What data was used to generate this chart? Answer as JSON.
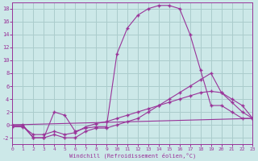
{
  "background_color": "#cce8e8",
  "grid_color": "#aacccc",
  "line_color": "#993399",
  "line1_x": [
    0,
    1,
    2,
    3,
    4,
    5,
    6,
    7,
    8,
    9,
    10,
    11,
    12,
    13,
    14,
    15,
    16,
    17,
    18,
    19,
    20,
    21,
    22,
    23
  ],
  "line1_y": [
    0,
    0,
    -2,
    -2,
    2,
    1.5,
    -1,
    -0.5,
    -0.3,
    -0.3,
    11,
    15,
    17,
    18,
    18.5,
    18.5,
    18,
    14,
    8.5,
    3,
    3,
    2,
    1,
    1
  ],
  "line2_x": [
    0,
    1,
    2,
    3,
    4,
    5,
    6,
    7,
    8,
    9,
    10,
    11,
    12,
    13,
    14,
    15,
    16,
    17,
    18,
    19,
    20,
    21,
    22,
    23
  ],
  "line2_y": [
    -0.2,
    -0.2,
    -2,
    -2,
    -1.5,
    -2,
    -2,
    -1,
    -0.5,
    -0.5,
    0,
    0.5,
    1,
    2,
    3,
    4,
    5,
    6,
    7,
    8,
    5,
    3.5,
    2,
    1
  ],
  "line3_x": [
    0,
    1,
    2,
    3,
    4,
    5,
    6,
    7,
    8,
    9,
    10,
    11,
    12,
    13,
    14,
    15,
    16,
    17,
    18,
    19,
    20,
    21,
    22,
    23
  ],
  "line3_y": [
    -0.3,
    -0.3,
    -1.5,
    -1.5,
    -1,
    -1.5,
    -1.2,
    -0.3,
    0.2,
    0.5,
    1,
    1.5,
    2,
    2.5,
    3,
    3.5,
    4,
    4.5,
    5,
    5.2,
    5,
    4,
    3,
    1
  ],
  "line4_x": [
    0,
    23
  ],
  "line4_y": [
    0,
    1
  ],
  "xlabel": "Windchill (Refroidissement éolien,°C)",
  "xlim": [
    0,
    23
  ],
  "ylim": [
    -3,
    19
  ],
  "xticks": [
    0,
    1,
    2,
    3,
    4,
    5,
    6,
    7,
    8,
    9,
    10,
    11,
    12,
    13,
    14,
    15,
    16,
    17,
    18,
    19,
    20,
    21,
    22,
    23
  ],
  "yticks": [
    -2,
    0,
    2,
    4,
    6,
    8,
    10,
    12,
    14,
    16,
    18
  ]
}
